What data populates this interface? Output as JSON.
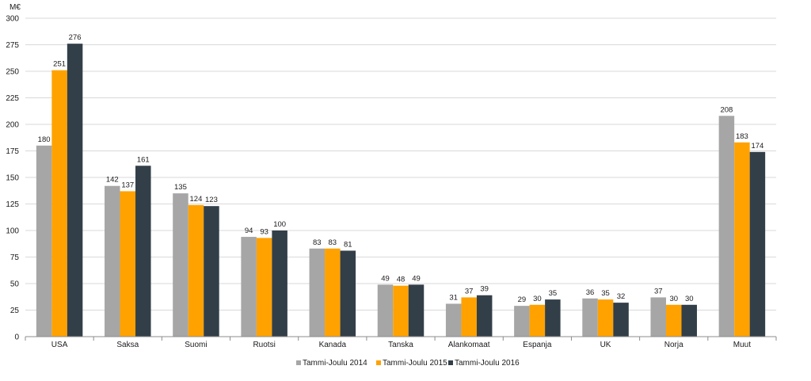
{
  "chart_data": {
    "type": "bar",
    "title": "",
    "xlabel": "",
    "ylabel": "",
    "unit_label": "M€",
    "ylim": [
      0,
      300
    ],
    "yticks": [
      0,
      25,
      50,
      75,
      100,
      125,
      150,
      175,
      200,
      225,
      250,
      275,
      300
    ],
    "grid": true,
    "legend_position": "bottom-center",
    "categories": [
      "USA",
      "Saksa",
      "Suomi",
      "Ruotsi",
      "Kanada",
      "Tanska",
      "Alankomaat",
      "Espanja",
      "UK",
      "Norja",
      "Muut"
    ],
    "series": [
      {
        "name": "Tammi-Joulu 2014",
        "color": "#a6a6a6",
        "values": [
          180,
          142,
          135,
          94,
          83,
          49,
          31,
          29,
          36,
          37,
          208
        ]
      },
      {
        "name": "Tammi-Joulu 2015",
        "color": "#ffa200",
        "values": [
          251,
          137,
          124,
          93,
          83,
          48,
          37,
          30,
          35,
          30,
          183
        ]
      },
      {
        "name": "Tammi-Joulu 2016",
        "color": "#333f48",
        "values": [
          276,
          161,
          123,
          100,
          81,
          49,
          39,
          35,
          32,
          30,
          174
        ]
      }
    ]
  }
}
